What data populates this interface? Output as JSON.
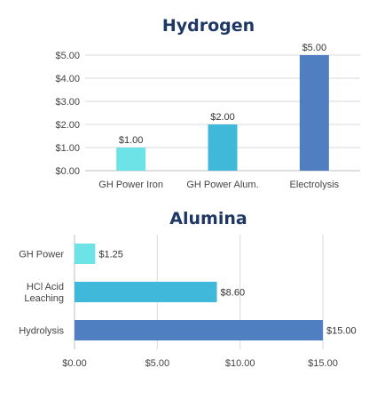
{
  "chart_data": [
    {
      "type": "bar",
      "orientation": "vertical",
      "title": "Hydrogen",
      "categories": [
        "GH Power Iron",
        "GH Power Alum.",
        "Electrolysis"
      ],
      "values": [
        1.0,
        2.0,
        5.0
      ],
      "data_labels": [
        "$1.00",
        "$2.00",
        "$5.00"
      ],
      "colors": [
        "#6ee3e7",
        "#3fb8d9",
        "#4f7fc1"
      ],
      "ylim": [
        0,
        5
      ],
      "y_ticks": [
        0,
        1,
        2,
        3,
        4,
        5
      ],
      "y_tick_labels": [
        "$0.00",
        "$1.00",
        "$2.00",
        "$3.00",
        "$4.00",
        "$5.00"
      ],
      "xlabel": "",
      "ylabel": "",
      "grid": true,
      "legend": "none"
    },
    {
      "type": "bar",
      "orientation": "horizontal",
      "title": "Alumina",
      "categories": [
        "GH Power",
        "HCl Acid Leaching",
        "Hydrolysis"
      ],
      "category_lines": [
        [
          "GH Power"
        ],
        [
          "HCl Acid",
          "Leaching"
        ],
        [
          "Hydrolysis"
        ]
      ],
      "values": [
        1.25,
        8.6,
        15.0
      ],
      "data_labels": [
        "$1.25",
        "$8.60",
        "$15.00"
      ],
      "colors": [
        "#6ee3e7",
        "#3fb8d9",
        "#4f7fc1"
      ],
      "xlim": [
        0,
        15
      ],
      "x_ticks": [
        0,
        5,
        10,
        15
      ],
      "x_tick_labels": [
        "$0.00",
        "$5.00",
        "$10.00",
        "$15.00"
      ],
      "xlabel": "",
      "ylabel": "",
      "grid": true,
      "legend": "none"
    }
  ]
}
